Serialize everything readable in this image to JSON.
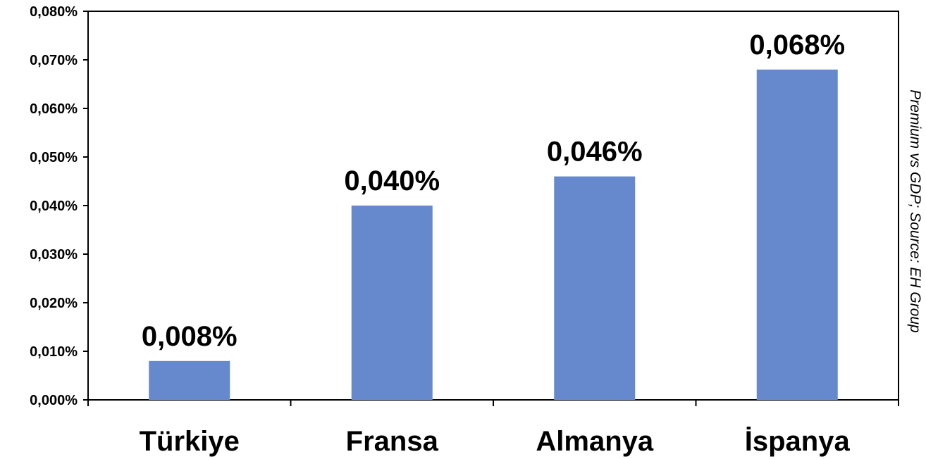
{
  "chart_data": {
    "type": "bar",
    "categories": [
      "Türkiye",
      "Fransa",
      "Almanya",
      "İspanya"
    ],
    "values": [
      0.008,
      0.04,
      0.046,
      0.068
    ],
    "data_labels": [
      "0,008%",
      "0,040%",
      "0,046%",
      "0,068%"
    ],
    "ylim": [
      0,
      0.08
    ],
    "yticks": [
      0,
      0.01,
      0.02,
      0.03,
      0.04,
      0.05,
      0.06,
      0.07,
      0.08
    ],
    "ytick_labels": [
      "0,000%",
      "0,010%",
      "0,020%",
      "0,030%",
      "0,040%",
      "0,050%",
      "0,060%",
      "0,070%",
      "0,080%"
    ],
    "grid": false,
    "bar_color": "#6688cc",
    "side_note": "Premium vs GDP; Source: EH Group"
  }
}
